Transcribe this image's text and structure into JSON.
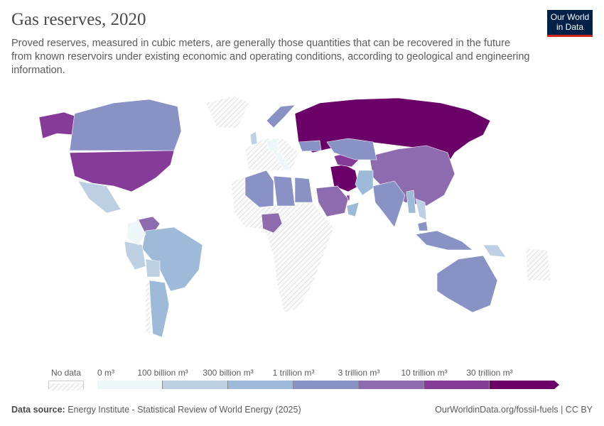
{
  "header": {
    "title": "Gas reserves, 2020",
    "subtitle": "Proved reserves, measured in cubic meters, are generally those quantities that can be recovered in the future from known reservoirs under existing economic and operating conditions, according to geological and engineering information.",
    "logo": "Our World in Data"
  },
  "legend": {
    "no_data_label": "No data",
    "labels": [
      "0 m³",
      "100 billion m³",
      "300 billion m³",
      "1 trillion m³",
      "3 trillion m³",
      "10 trillion m³",
      "30 trillion m³"
    ],
    "colors": [
      "#eef7f8",
      "#bccfe3",
      "#9dbad9",
      "#8892c4",
      "#8e6aaf",
      "#863b98",
      "#6b0069"
    ],
    "no_data_color": "#e8e8e8"
  },
  "map_data": {
    "type": "choropleth",
    "countries": [
      {
        "name": "Russia",
        "bin": 6
      },
      {
        "name": "Iran",
        "bin": 6
      },
      {
        "name": "Qatar",
        "bin": 5
      },
      {
        "name": "United States",
        "bin": 5
      },
      {
        "name": "Turkmenistan",
        "bin": 5
      },
      {
        "name": "China",
        "bin": 4
      },
      {
        "name": "Venezuela",
        "bin": 4
      },
      {
        "name": "Saudi Arabia",
        "bin": 4
      },
      {
        "name": "Nigeria",
        "bin": 4
      },
      {
        "name": "Canada",
        "bin": 3
      },
      {
        "name": "Algeria",
        "bin": 3
      },
      {
        "name": "Australia",
        "bin": 3
      },
      {
        "name": "Kazakhstan",
        "bin": 3
      },
      {
        "name": "Libya",
        "bin": 3
      },
      {
        "name": "Egypt",
        "bin": 3
      },
      {
        "name": "India",
        "bin": 3
      },
      {
        "name": "Norway",
        "bin": 3
      },
      {
        "name": "Indonesia",
        "bin": 3
      },
      {
        "name": "Malaysia",
        "bin": 3
      },
      {
        "name": "Ukraine",
        "bin": 3
      },
      {
        "name": "Brazil",
        "bin": 2
      },
      {
        "name": "Argentina",
        "bin": 2
      },
      {
        "name": "Myanmar",
        "bin": 2
      },
      {
        "name": "Pakistan",
        "bin": 2
      },
      {
        "name": "Oman",
        "bin": 2
      },
      {
        "name": "Mexico",
        "bin": 1
      },
      {
        "name": "Peru",
        "bin": 1
      },
      {
        "name": "Bolivia",
        "bin": 1
      },
      {
        "name": "Thailand",
        "bin": 1
      },
      {
        "name": "United Kingdom",
        "bin": 1
      },
      {
        "name": "Papua New Guinea",
        "bin": 1
      },
      {
        "name": "Colombia",
        "bin": 0
      },
      {
        "name": "Germany",
        "bin": 0
      },
      {
        "name": "Italy",
        "bin": 0
      }
    ]
  },
  "footer": {
    "source_label": "Data source:",
    "source": "Energy Institute - Statistical Review of World Energy (2025)",
    "link": "OurWorldinData.org/fossil-fuels | CC BY"
  }
}
